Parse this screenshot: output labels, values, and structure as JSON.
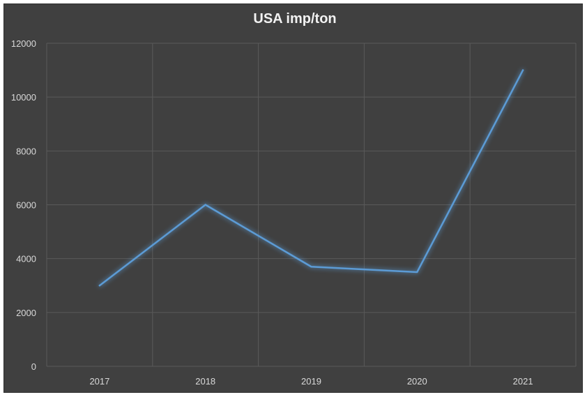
{
  "chart_data": {
    "type": "line",
    "title": "USA imp/ton",
    "categories": [
      "2017",
      "2018",
      "2019",
      "2020",
      "2021"
    ],
    "series": [
      {
        "values": [
          3000,
          6000,
          3700,
          3500,
          11000
        ]
      }
    ],
    "ylim": [
      0,
      12000
    ],
    "yticks": [
      0,
      2000,
      4000,
      6000,
      8000,
      10000,
      12000
    ],
    "grid": true,
    "colors": {
      "background": "#404040",
      "line": "#5b9bd5",
      "grid": "#5a5a5a",
      "text": "#d9d9d9"
    }
  }
}
